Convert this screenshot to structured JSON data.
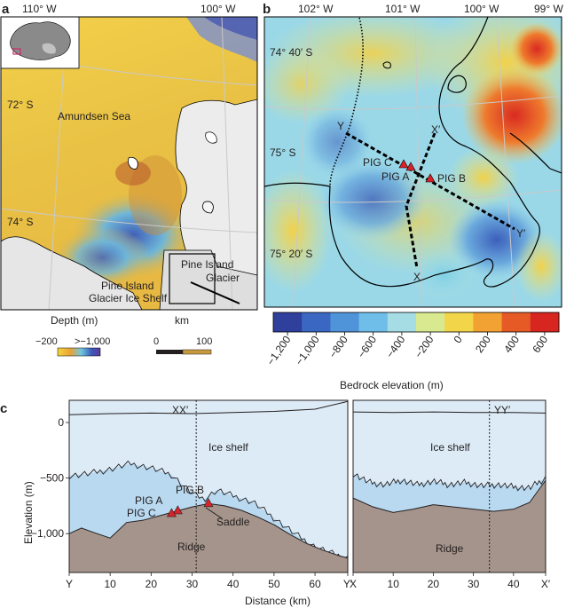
{
  "panel_a": {
    "letter": "a",
    "lon_labels": [
      "110° W",
      "100° W"
    ],
    "lat_labels": [
      "72° S",
      "74° S"
    ],
    "place_labels": [
      "Amundsen Sea",
      "Pine Island",
      "Glacier",
      "Pine Island",
      "Glacier Ice Shelf"
    ],
    "depth_legend": {
      "title": "Depth (m)",
      "low": "−200",
      "high": ">−1,000"
    },
    "km_scale": {
      "title": "km",
      "ticks": [
        "0",
        "100"
      ]
    }
  },
  "panel_b": {
    "letter": "b",
    "lon_labels": [
      "102° W",
      "101° W",
      "100° W",
      "99° W"
    ],
    "lat_labels": [
      "74° 40′ S",
      "75° S",
      "75° 20′ S"
    ],
    "point_labels": [
      "Y",
      "X′",
      "PIG C",
      "PIG A",
      "PIG B",
      "Y′",
      "X"
    ],
    "colorbar": {
      "title": "Bedrock elevation (m)",
      "ticks": [
        "−1,200",
        "−1,000",
        "−800",
        "−600",
        "−400",
        "−200",
        "0",
        "200",
        "400",
        "600"
      ],
      "colors": [
        "#2e3f9c",
        "#3a67c2",
        "#4f93d8",
        "#6fbde9",
        "#a6dde4",
        "#d8e98f",
        "#f3d54a",
        "#f1a232",
        "#e65a26",
        "#d7261f"
      ]
    }
  },
  "panel_c": {
    "letter": "c",
    "ylabel": "Elevation (m)",
    "xlabel": "Distance (km)",
    "labels": {
      "xx_profile": "XX′",
      "yy_profile": "YY′",
      "ice_shelf": "Ice shelf",
      "ridge": "Ridge",
      "pig_a": "PIG A",
      "pig_b": "PIG B",
      "pig_c": "PIG C",
      "saddle": "Saddle"
    },
    "colors": {
      "ice": "#dcebf6",
      "water": "#b9d9f0",
      "rock": "#a5948b",
      "marker": "#d9232b"
    }
  },
  "chart_data": [
    {
      "type": "area",
      "panel": "c-left",
      "title": "XX′",
      "xlabel": "Distance (km)",
      "ylabel": "Elevation (m)",
      "xlim": [
        0,
        68
      ],
      "ylim": [
        -1350,
        200
      ],
      "x_tick_labels": [
        "Y",
        "10",
        "20",
        "30",
        "40",
        "50",
        "60",
        "Y′"
      ],
      "x_ticks": [
        0,
        10,
        20,
        30,
        40,
        50,
        60,
        68
      ],
      "y_tick_labels": [
        "0",
        "−500",
        "−1,000"
      ],
      "y_ticks": [
        0,
        -500,
        -1000
      ],
      "crossing_x": 31,
      "surface": {
        "x": [
          0,
          10,
          20,
          30,
          40,
          50,
          60,
          68
        ],
        "y": [
          70,
          80,
          85,
          80,
          90,
          100,
          120,
          190
        ]
      },
      "ice_base": {
        "x": [
          0,
          5,
          10,
          15,
          20,
          25,
          30,
          33,
          36,
          40,
          45,
          50,
          55,
          60,
          65,
          68
        ],
        "y": [
          -480,
          -460,
          -420,
          -370,
          -410,
          -470,
          -640,
          -690,
          -610,
          -660,
          -720,
          -860,
          -1000,
          -1120,
          -1190,
          -1220
        ]
      },
      "bed": {
        "x": [
          0,
          3,
          6,
          10,
          14,
          18,
          22,
          26,
          30,
          34,
          38,
          42,
          46,
          50,
          54,
          58,
          62,
          66,
          68
        ],
        "y": [
          -1000,
          -950,
          -990,
          -1040,
          -900,
          -880,
          -840,
          -800,
          -760,
          -730,
          -750,
          -790,
          -850,
          -920,
          -1010,
          -1090,
          -1150,
          -1200,
          -1220
        ]
      },
      "markers": [
        {
          "name": "PIG A",
          "x": 26.5,
          "y": -790
        },
        {
          "name": "PIG B",
          "x": 34,
          "y": -725
        },
        {
          "name": "PIG C",
          "x": 25,
          "y": -815
        }
      ]
    },
    {
      "type": "area",
      "panel": "c-right",
      "title": "YY′",
      "xlabel": "Distance (km)",
      "xlim": [
        0,
        48
      ],
      "ylim": [
        -1350,
        200
      ],
      "x_tick_labels": [
        "X",
        "10",
        "20",
        "30",
        "40",
        "X′"
      ],
      "x_ticks": [
        0,
        10,
        20,
        30,
        40,
        48
      ],
      "crossing_x": 34,
      "surface": {
        "x": [
          0,
          10,
          20,
          30,
          40,
          48
        ],
        "y": [
          95,
          90,
          95,
          90,
          90,
          85
        ]
      },
      "ice_base": {
        "x": [
          0,
          4,
          8,
          12,
          16,
          20,
          24,
          28,
          32,
          36,
          40,
          44,
          48
        ],
        "y": [
          -460,
          -540,
          -560,
          -520,
          -560,
          -530,
          -560,
          -540,
          -570,
          -560,
          -580,
          -590,
          -500
        ]
      },
      "bed": {
        "x": [
          0,
          5,
          10,
          15,
          20,
          25,
          30,
          35,
          40,
          44,
          48
        ],
        "y": [
          -680,
          -760,
          -810,
          -780,
          -740,
          -760,
          -780,
          -800,
          -780,
          -720,
          -520
        ]
      }
    }
  ]
}
